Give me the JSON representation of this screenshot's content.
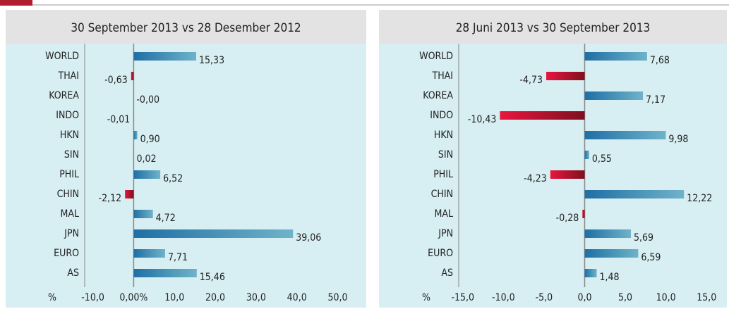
{
  "chart_data": [
    {
      "type": "hbar",
      "title": "30 September 2013 vs 28 Desember 2012",
      "xlabel": "%",
      "categories": [
        "WORLD",
        "THAI",
        "KOREA",
        "INDO",
        "HKN",
        "SIN",
        "PHIL",
        "CHIN",
        "MAL",
        "JPN",
        "EURO",
        "AS"
      ],
      "values": [
        15.33,
        -0.63,
        -0.0,
        -0.01,
        0.9,
        0.02,
        6.52,
        -2.12,
        4.72,
        39.06,
        7.71,
        15.46
      ],
      "value_labels": [
        "15,33",
        "-0,63",
        "-0,00",
        "-0,01",
        "0,90",
        "0,02",
        "6,52",
        "-2,12",
        "4,72",
        "39,06",
        "7,71",
        "15,46"
      ],
      "colors": {
        "positive": "#1f6fa5",
        "negative": "#c8102e"
      },
      "xlim": [
        -12,
        57
      ],
      "xticks": [
        {
          "value": -10,
          "label": "-10,0"
        },
        {
          "value": 0,
          "label": "0,00%"
        },
        {
          "value": 10,
          "label": "10,0"
        },
        {
          "value": 20,
          "label": "20,0"
        },
        {
          "value": 30,
          "label": "30,0"
        },
        {
          "value": 40,
          "label": "40,0"
        },
        {
          "value": 50,
          "label": "50,0"
        }
      ]
    },
    {
      "type": "hbar",
      "title": "28 Juni 2013 vs 30 September 2013",
      "xlabel": "%",
      "categories": [
        "WORLD",
        "THAI",
        "KOREA",
        "INDO",
        "HKN",
        "SIN",
        "PHIL",
        "CHIN",
        "MAL",
        "JPN",
        "EURO",
        "AS"
      ],
      "values": [
        7.68,
        -4.73,
        7.17,
        -10.43,
        9.98,
        0.55,
        -4.23,
        12.22,
        -0.28,
        5.69,
        6.59,
        1.48
      ],
      "value_labels": [
        "7,68",
        "-4,73",
        "7,17",
        "-10,43",
        "9,98",
        "0,55",
        "-4,23",
        "12,22",
        "-0,28",
        "5,69",
        "6,59",
        "1,48"
      ],
      "colors": {
        "positive": "#1f6fa5",
        "negative": "#c8102e"
      },
      "xlim": [
        -15.5,
        17.5
      ],
      "xticks": [
        {
          "value": -15,
          "label": "-15,0"
        },
        {
          "value": -10,
          "label": "-10,0"
        },
        {
          "value": -5,
          "label": "-5,0"
        },
        {
          "value": 0,
          "label": "0,0"
        },
        {
          "value": 5,
          "label": "5,0"
        },
        {
          "value": 10,
          "label": "10,0"
        },
        {
          "value": 15,
          "label": "15,0"
        }
      ]
    }
  ]
}
